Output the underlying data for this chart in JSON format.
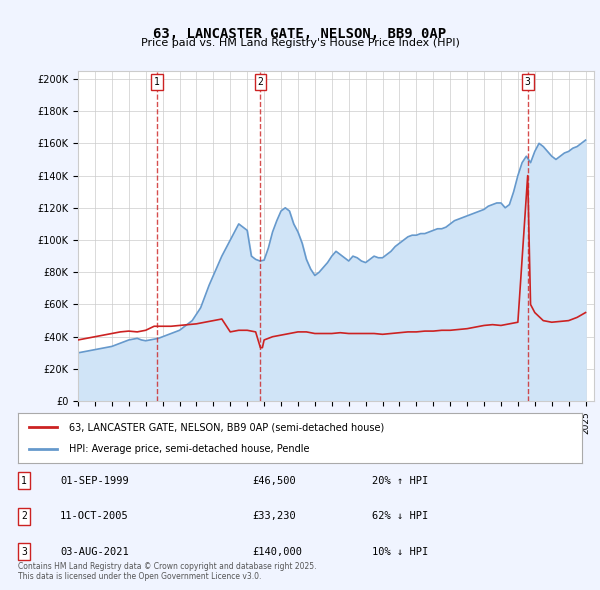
{
  "title": "63, LANCASTER GATE, NELSON, BB9 0AP",
  "subtitle": "Price paid vs. HM Land Registry's House Price Index (HPI)",
  "ylabel_vals": [
    0,
    20000,
    40000,
    60000,
    80000,
    100000,
    120000,
    140000,
    160000,
    180000,
    200000
  ],
  "ylim": [
    0,
    205000
  ],
  "xlim_start": 1995.0,
  "xlim_end": 2025.5,
  "background_color": "#f0f4ff",
  "plot_bg_color": "#ffffff",
  "grid_color": "#cccccc",
  "hpi_line_color": "#6699cc",
  "hpi_fill_color": "#d0e4f7",
  "price_line_color": "#cc2222",
  "dashed_line_color": "#cc2222",
  "sale_points": [
    {
      "year": 1999.67,
      "price": 46500,
      "label": "1"
    },
    {
      "year": 2005.78,
      "price": 33230,
      "label": "2"
    },
    {
      "year": 2021.58,
      "price": 140000,
      "label": "3"
    }
  ],
  "legend_property_label": "63, LANCASTER GATE, NELSON, BB9 0AP (semi-detached house)",
  "legend_hpi_label": "HPI: Average price, semi-detached house, Pendle",
  "annotation_rows": [
    {
      "num": "1",
      "date": "01-SEP-1999",
      "price": "£46,500",
      "change": "20% ↑ HPI"
    },
    {
      "num": "2",
      "date": "11-OCT-2005",
      "price": "£33,230",
      "change": "62% ↓ HPI"
    },
    {
      "num": "3",
      "date": "03-AUG-2021",
      "price": "£140,000",
      "change": "10% ↓ HPI"
    }
  ],
  "footer": "Contains HM Land Registry data © Crown copyright and database right 2025.\nThis data is licensed under the Open Government Licence v3.0.",
  "hpi_data_x": [
    1995.0,
    1995.25,
    1995.5,
    1995.75,
    1996.0,
    1996.25,
    1996.5,
    1996.75,
    1997.0,
    1997.25,
    1997.5,
    1997.75,
    1998.0,
    1998.25,
    1998.5,
    1998.75,
    1999.0,
    1999.25,
    1999.5,
    1999.75,
    2000.0,
    2000.25,
    2000.5,
    2000.75,
    2001.0,
    2001.25,
    2001.5,
    2001.75,
    2002.0,
    2002.25,
    2002.5,
    2002.75,
    2003.0,
    2003.25,
    2003.5,
    2003.75,
    2004.0,
    2004.25,
    2004.5,
    2004.75,
    2005.0,
    2005.25,
    2005.5,
    2005.75,
    2006.0,
    2006.25,
    2006.5,
    2006.75,
    2007.0,
    2007.25,
    2007.5,
    2007.75,
    2008.0,
    2008.25,
    2008.5,
    2008.75,
    2009.0,
    2009.25,
    2009.5,
    2009.75,
    2010.0,
    2010.25,
    2010.5,
    2010.75,
    2011.0,
    2011.25,
    2011.5,
    2011.75,
    2012.0,
    2012.25,
    2012.5,
    2012.75,
    2013.0,
    2013.25,
    2013.5,
    2013.75,
    2014.0,
    2014.25,
    2014.5,
    2014.75,
    2015.0,
    2015.25,
    2015.5,
    2015.75,
    2016.0,
    2016.25,
    2016.5,
    2016.75,
    2017.0,
    2017.25,
    2017.5,
    2017.75,
    2018.0,
    2018.25,
    2018.5,
    2018.75,
    2019.0,
    2019.25,
    2019.5,
    2019.75,
    2020.0,
    2020.25,
    2020.5,
    2020.75,
    2021.0,
    2021.25,
    2021.5,
    2021.75,
    2022.0,
    2022.25,
    2022.5,
    2022.75,
    2023.0,
    2023.25,
    2023.5,
    2023.75,
    2024.0,
    2024.25,
    2024.5,
    2024.75,
    2025.0
  ],
  "hpi_data_y": [
    30000,
    30500,
    31000,
    31500,
    32000,
    32500,
    33000,
    33500,
    34000,
    35000,
    36000,
    37000,
    38000,
    38500,
    39000,
    38000,
    37500,
    38000,
    38500,
    39000,
    40000,
    41000,
    42000,
    43000,
    44000,
    46000,
    48000,
    50000,
    54000,
    58000,
    65000,
    72000,
    78000,
    84000,
    90000,
    95000,
    100000,
    105000,
    110000,
    108000,
    106000,
    90000,
    88000,
    87000,
    87500,
    95000,
    105000,
    112000,
    118000,
    120000,
    118000,
    110000,
    105000,
    98000,
    88000,
    82000,
    78000,
    80000,
    83000,
    86000,
    90000,
    93000,
    91000,
    89000,
    87000,
    90000,
    89000,
    87000,
    86000,
    88000,
    90000,
    89000,
    89000,
    91000,
    93000,
    96000,
    98000,
    100000,
    102000,
    103000,
    103000,
    104000,
    104000,
    105000,
    106000,
    107000,
    107000,
    108000,
    110000,
    112000,
    113000,
    114000,
    115000,
    116000,
    117000,
    118000,
    119000,
    121000,
    122000,
    123000,
    123000,
    120000,
    122000,
    130000,
    140000,
    148000,
    152000,
    148000,
    155000,
    160000,
    158000,
    155000,
    152000,
    150000,
    152000,
    154000,
    155000,
    157000,
    158000,
    160000,
    162000
  ],
  "price_data_x": [
    1995.0,
    1995.5,
    1996.0,
    1996.5,
    1997.0,
    1997.5,
    1998.0,
    1998.5,
    1999.0,
    1999.5,
    2000.0,
    2000.5,
    2001.0,
    2001.5,
    2002.0,
    2002.5,
    2003.0,
    2003.5,
    2004.0,
    2004.5,
    2005.0,
    2005.5,
    2005.78,
    2005.9,
    2006.0,
    2006.5,
    2007.0,
    2007.5,
    2008.0,
    2008.5,
    2009.0,
    2009.5,
    2010.0,
    2010.5,
    2011.0,
    2011.5,
    2012.0,
    2012.5,
    2013.0,
    2013.5,
    2014.0,
    2014.5,
    2015.0,
    2015.5,
    2016.0,
    2016.5,
    2017.0,
    2017.5,
    2018.0,
    2018.5,
    2019.0,
    2019.5,
    2020.0,
    2020.5,
    2021.0,
    2021.58,
    2021.75,
    2022.0,
    2022.5,
    2023.0,
    2023.5,
    2024.0,
    2024.5,
    2025.0
  ],
  "price_data_y": [
    38000,
    39000,
    40000,
    41000,
    42000,
    43000,
    43500,
    43000,
    44000,
    46500,
    46500,
    46500,
    47000,
    47500,
    48000,
    49000,
    50000,
    51000,
    43000,
    44000,
    44000,
    43000,
    33230,
    33230,
    38000,
    40000,
    41000,
    42000,
    43000,
    43000,
    42000,
    42000,
    42000,
    42500,
    42000,
    42000,
    42000,
    42000,
    41500,
    42000,
    42500,
    43000,
    43000,
    43500,
    43500,
    44000,
    44000,
    44500,
    45000,
    46000,
    47000,
    47500,
    47000,
    48000,
    49000,
    140000,
    60000,
    55000,
    50000,
    49000,
    49500,
    50000,
    52000,
    55000
  ]
}
